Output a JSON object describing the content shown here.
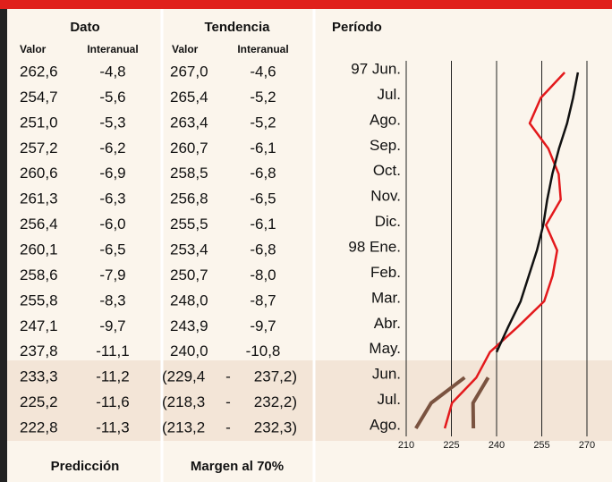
{
  "table": {
    "header": {
      "dato": "Dato",
      "tendencia": "Tendencia",
      "periodo": "Período"
    },
    "subheader": {
      "dato_valor": "Valor",
      "dato_interanual": "Interanual",
      "tend_valor": "Valor",
      "tend_interanual": "Interanual"
    },
    "rows": [
      {
        "dato": [
          "262,6",
          "-4,8"
        ],
        "tendencia": [
          "267,0",
          "-4,6"
        ]
      },
      {
        "dato": [
          "254,7",
          "-5,6"
        ],
        "tendencia": [
          "265,4",
          "-5,2"
        ]
      },
      {
        "dato": [
          "251,0",
          "-5,3"
        ],
        "tendencia": [
          "263,4",
          "-5,2"
        ]
      },
      {
        "dato": [
          "257,2",
          "-6,2"
        ],
        "tendencia": [
          "260,7",
          "-6,1"
        ]
      },
      {
        "dato": [
          "260,6",
          "-6,9"
        ],
        "tendencia": [
          "258,5",
          "-6,8"
        ]
      },
      {
        "dato": [
          "261,3",
          "-6,3"
        ],
        "tendencia": [
          "256,8",
          "-6,5"
        ]
      },
      {
        "dato": [
          "256,4",
          "-6,0"
        ],
        "tendencia": [
          "255,5",
          "-6,1"
        ]
      },
      {
        "dato": [
          "260,1",
          "-6,5"
        ],
        "tendencia": [
          "253,4",
          "-6,8"
        ]
      },
      {
        "dato": [
          "258,6",
          "-7,9"
        ],
        "tendencia": [
          "250,7",
          "-8,0"
        ]
      },
      {
        "dato": [
          "255,8",
          "-8,3"
        ],
        "tendencia": [
          "248,0",
          "-8,7"
        ]
      },
      {
        "dato": [
          "247,1",
          "-9,7"
        ],
        "tendencia": [
          "243,9",
          "-9,7"
        ]
      },
      {
        "dato": [
          "237,8",
          "-11,1"
        ],
        "tendencia": [
          "240,0",
          "-10,8"
        ]
      },
      {
        "dato": [
          "233,3",
          "-11,2"
        ],
        "tendencia": [
          "(229,4",
          "-",
          "237,2)"
        ]
      },
      {
        "dato": [
          "225,2",
          "-11,6"
        ],
        "tendencia": [
          "(218,3",
          "-",
          "232,2)"
        ]
      },
      {
        "dato": [
          "222,8",
          "-11,3"
        ],
        "tendencia": [
          "(213,2",
          "-",
          "232,3)"
        ]
      }
    ],
    "footer": {
      "dato": "Predicción",
      "tendencia": "Margen al 70%"
    }
  },
  "chart_data": {
    "type": "line",
    "categories": [
      "97 Jun.",
      "Jul.",
      "Ago.",
      "Sep.",
      "Oct.",
      "Nov.",
      "Dic.",
      "98 Ene.",
      "Feb.",
      "Mar.",
      "Abr.",
      "May.",
      "Jun.",
      "Jul.",
      "Ago."
    ],
    "series": [
      {
        "name": "Dato",
        "color": "#e3191c",
        "values": [
          262.6,
          254.7,
          251.0,
          257.2,
          260.6,
          261.3,
          256.4,
          260.1,
          258.6,
          255.8,
          247.1,
          237.8,
          233.3,
          225.2,
          222.8
        ]
      },
      {
        "name": "Tendencia",
        "color": "#111111",
        "values": [
          267.0,
          265.4,
          263.4,
          260.7,
          258.5,
          256.8,
          255.5,
          253.4,
          250.7,
          248.0,
          243.9,
          240.0,
          null,
          null,
          null
        ]
      },
      {
        "color": "#7a5340",
        "values": [
          null,
          null,
          null,
          null,
          null,
          null,
          null,
          null,
          null,
          null,
          null,
          null,
          229.4,
          218.3,
          213.2
        ]
      },
      {
        "color": "#7a5340",
        "values": [
          null,
          null,
          null,
          null,
          null,
          null,
          null,
          null,
          null,
          null,
          null,
          null,
          237.2,
          232.2,
          232.3
        ]
      }
    ],
    "xlim": [
      210,
      270
    ],
    "xticks": [
      210,
      225,
      240,
      255,
      270
    ],
    "grid": true
  }
}
